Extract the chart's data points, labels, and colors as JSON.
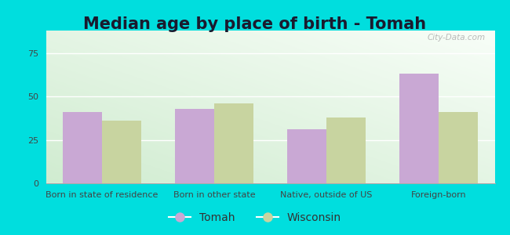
{
  "title": "Median age by place of birth - Tomah",
  "categories": [
    "Born in state of residence",
    "Born in other state",
    "Native, outside of US",
    "Foreign-born"
  ],
  "tomah_values": [
    41,
    43,
    31,
    63
  ],
  "wisconsin_values": [
    36,
    46,
    38,
    41
  ],
  "tomah_color": "#c9a8d4",
  "wisconsin_color": "#c8d4a0",
  "background_outer": "#00dede",
  "ylim": [
    0,
    88
  ],
  "yticks": [
    0,
    25,
    50,
    75
  ],
  "bar_width": 0.35,
  "legend_tomah": "Tomah",
  "legend_wisconsin": "Wisconsin",
  "watermark": "City-Data.com",
  "title_fontsize": 15,
  "tick_fontsize": 8,
  "legend_fontsize": 10
}
